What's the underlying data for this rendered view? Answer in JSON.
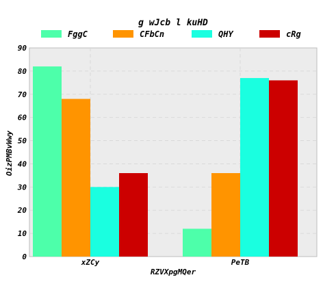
{
  "chart_data": {
    "type": "bar",
    "title": "g wJcb l kuHD",
    "xlabel": "RZVXpgMQer",
    "ylabel": "OizPMBvWwy",
    "categories": [
      "xZCy",
      "PeTB"
    ],
    "ylim": [
      0,
      90
    ],
    "yticks": [
      0,
      10,
      20,
      30,
      40,
      50,
      60,
      70,
      80,
      90
    ],
    "grid": true,
    "legend_position": "top",
    "series": [
      {
        "name": "FggC",
        "color": "#4dffaa",
        "values": [
          82,
          12
        ]
      },
      {
        "name": "CFbCn",
        "color": "#ff9400",
        "values": [
          68,
          36
        ]
      },
      {
        "name": "QHY",
        "color": "#1affe0",
        "values": [
          30,
          77
        ]
      },
      {
        "name": "cRg",
        "color": "#cc0000",
        "values": [
          36,
          76
        ]
      }
    ]
  }
}
